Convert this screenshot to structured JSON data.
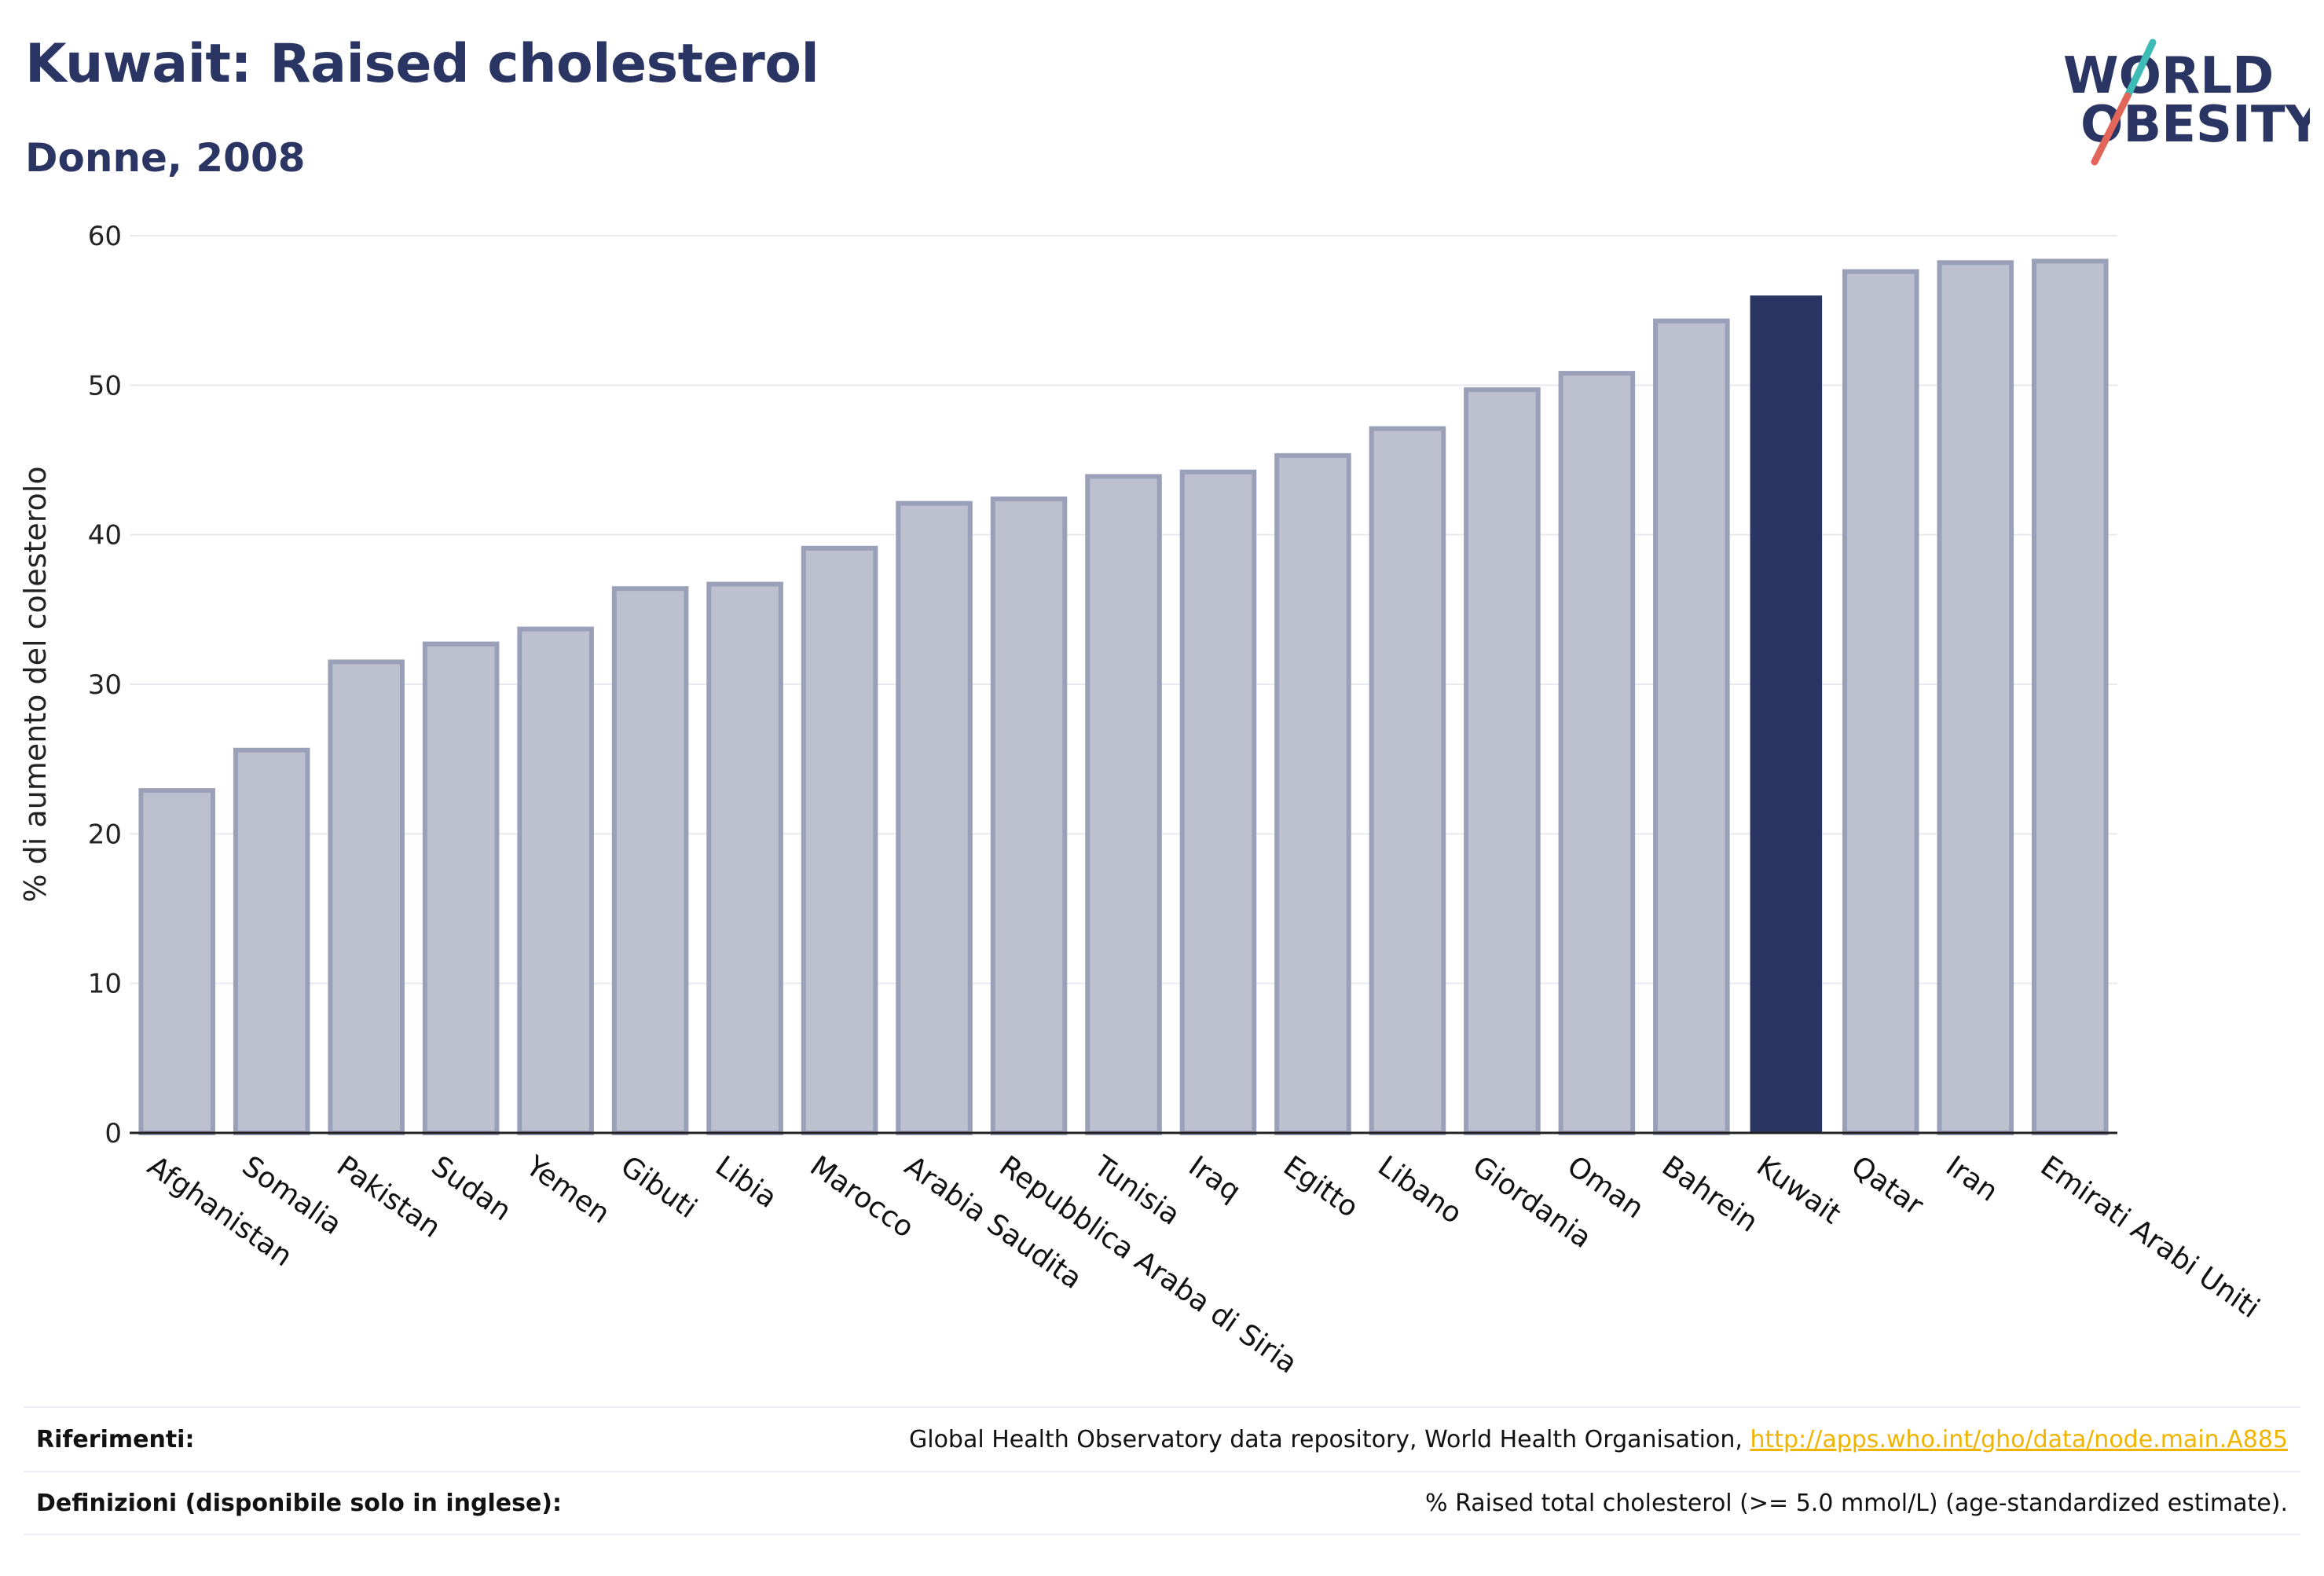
{
  "header": {
    "title": "Kuwait: Raised cholesterol",
    "subtitle": "Donne, 2008"
  },
  "logo": {
    "line1": "WORLD",
    "line2": "OBESITY"
  },
  "colors": {
    "highlight": "#2a3563",
    "bar_fill": "#bcc0cf",
    "bar_stroke": "#9aa0b8",
    "logo_teal": "#3cbcb4",
    "logo_red": "#e2655a",
    "link": "#f0b400"
  },
  "chart_data": {
    "type": "bar",
    "title": "Kuwait: Raised cholesterol",
    "subtitle": "Donne, 2008",
    "ylabel": "% di aumento del colesterolo",
    "xlabel": "",
    "ylim": [
      0,
      60
    ],
    "yticks": [
      0,
      10,
      20,
      30,
      40,
      50,
      60
    ],
    "grid": true,
    "highlight": "Kuwait",
    "categories": [
      "Afghanistan",
      "Somalia",
      "Pakistan",
      "Sudan",
      "Yemen",
      "Gibuti",
      "Libia",
      "Marocco",
      "Arabia Saudita",
      "Repubblica Araba di Siria",
      "Tunisia",
      "Iraq",
      "Egitto",
      "Libano",
      "Giordania",
      "Oman",
      "Bahrein",
      "Kuwait",
      "Qatar",
      "Iran",
      "Emirati Arabi Uniti"
    ],
    "values": [
      22.9,
      25.6,
      31.5,
      32.7,
      33.7,
      36.4,
      36.7,
      39.1,
      42.1,
      42.4,
      43.9,
      44.2,
      45.3,
      47.1,
      49.7,
      50.8,
      54.3,
      56.0,
      57.6,
      58.2,
      58.3
    ]
  },
  "footer": {
    "references_label": "Riferimenti:",
    "references_text": "Global Health Observatory data repository, World Health Organisation,",
    "references_link": "http://apps.who.int/gho/data/node.main.A885",
    "definitions_label": "Definizioni (disponibile solo in inglese):",
    "definitions_text": "% Raised total cholesterol (>= 5.0 mmol/L) (age-standardized estimate)."
  }
}
